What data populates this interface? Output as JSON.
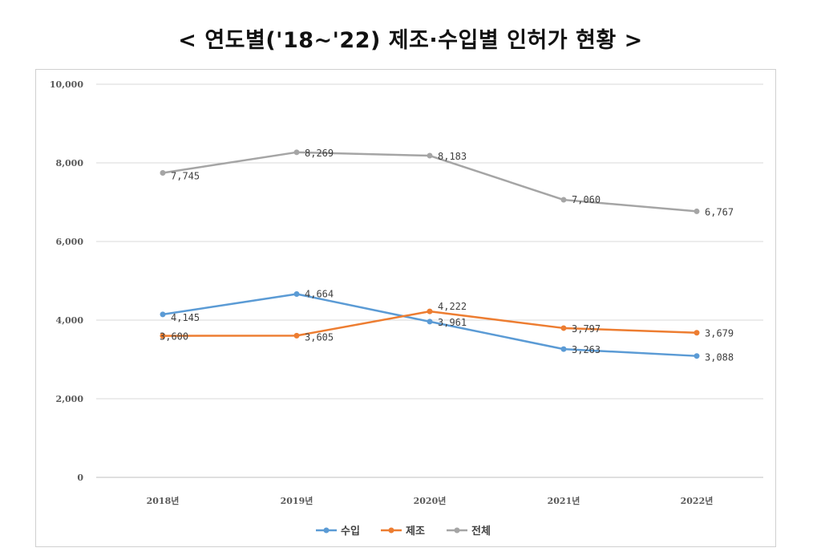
{
  "title": "< 연도별('18~'22) 제조·수입별 인허가 현황 >",
  "chart_data": {
    "type": "line",
    "title": "< 연도별('18~'22) 제조·수입별 인허가 현황 >",
    "categories": [
      "2018년",
      "2019년",
      "2020년",
      "2021년",
      "2022년"
    ],
    "ylim": [
      0,
      10000
    ],
    "yticks": [
      0,
      2000,
      4000,
      6000,
      8000,
      10000
    ],
    "ytick_labels": [
      "0",
      "2,000",
      "4,000",
      "6,000",
      "8,000",
      "10,000"
    ],
    "grid": true,
    "legend_position": "bottom",
    "series": [
      {
        "name": "수입",
        "color": "#5b9bd5",
        "values": [
          4145,
          4664,
          3961,
          3263,
          3088
        ],
        "labels": [
          "4,145",
          "4,664",
          "3,961",
          "3,263",
          "3,088"
        ]
      },
      {
        "name": "제조",
        "color": "#ed7d31",
        "values": [
          3600,
          3605,
          4222,
          3797,
          3679
        ],
        "labels": [
          "3,600",
          "3,605",
          "4,222",
          "3,797",
          "3,679"
        ]
      },
      {
        "name": "전체",
        "color": "#a5a5a5",
        "values": [
          7745,
          8269,
          8183,
          7060,
          6767
        ],
        "labels": [
          "7,745",
          "8,269",
          "8,183",
          "7,060",
          "6,767"
        ]
      }
    ]
  }
}
